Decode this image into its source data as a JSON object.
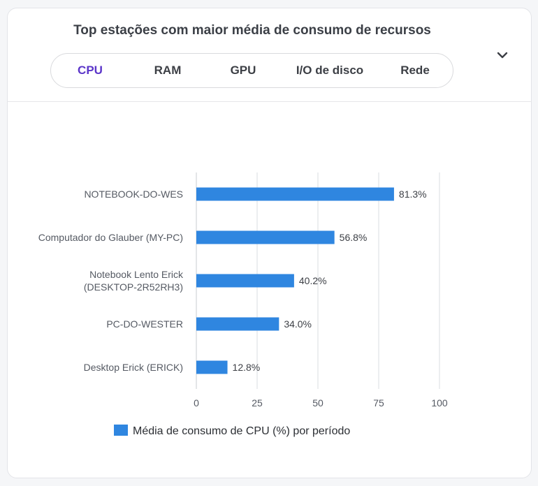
{
  "card": {
    "title": "Top estações com maior média de consumo de recursos"
  },
  "tabs": [
    {
      "label": "CPU",
      "active": true
    },
    {
      "label": "RAM",
      "active": false
    },
    {
      "label": "GPU",
      "active": false
    },
    {
      "label": "I/O de disco",
      "active": false
    },
    {
      "label": "Rede",
      "active": false
    }
  ],
  "icons": {
    "expand": "chevron-down-icon"
  },
  "colors": {
    "bar": "#2f86e0",
    "active_tab": "#5b35c9",
    "grid": "#d9dce1"
  },
  "chart_data": {
    "type": "bar",
    "orientation": "horizontal",
    "categories": [
      [
        "NOTEBOOK-DO-WES"
      ],
      [
        "Computador do Glauber (MY-PC)"
      ],
      [
        "Notebook Lento Erick",
        "(DESKTOP-2R52RH3)"
      ],
      [
        "PC-DO-WESTER"
      ],
      [
        "Desktop Erick (ERICK)"
      ]
    ],
    "series": [
      {
        "name": "Média de consumo de CPU (%) por período",
        "values": [
          81.3,
          56.8,
          40.2,
          34.0,
          12.8
        ]
      }
    ],
    "value_labels": [
      "81.3%",
      "56.8%",
      "40.2%",
      "34.0%",
      "12.8%"
    ],
    "x_ticks": [
      "0",
      "25",
      "50",
      "75",
      "100"
    ],
    "xlim": [
      0,
      100
    ],
    "grid": true,
    "legend": "bottom"
  }
}
